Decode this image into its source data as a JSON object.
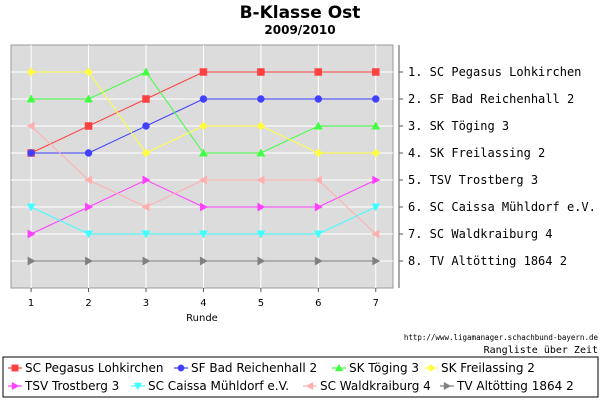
{
  "chart_data": {
    "type": "line",
    "title": "B-Klasse Ost",
    "subtitle": "2009/2010",
    "xlabel": "Runde",
    "ylabel": "",
    "x": [
      1,
      2,
      3,
      4,
      5,
      6,
      7
    ],
    "ylim": [
      9,
      0
    ],
    "y_inverted": true,
    "grid": true,
    "legend_placement": "bottom",
    "rank_labels": [
      "1. SC Pegasus Lohkirchen",
      "2. SF Bad Reichenhall 2",
      "3. SK Töging 3",
      "4. SK Freilassing 2",
      "5. TSV Trostberg 3",
      "6. SC Caissa Mühldorf e.V.",
      "7. SC Waldkraiburg 4",
      "8. TV Altötting 1864 2"
    ],
    "source": "http://www.ligamanager.schachbund-bayern.de",
    "caption": "Rangliste über Zeit",
    "series": [
      {
        "name": "SC Pegasus Lohkirchen",
        "color": "#ff4040",
        "marker": "square",
        "values": [
          4,
          3,
          2,
          1,
          1,
          1,
          1
        ]
      },
      {
        "name": "SF Bad Reichenhall 2",
        "color": "#4040ff",
        "marker": "circle",
        "values": [
          4,
          4,
          3,
          2,
          2,
          2,
          2
        ]
      },
      {
        "name": "SK Töging 3",
        "color": "#40ff40",
        "marker": "triangle-up",
        "values": [
          2,
          2,
          1,
          4,
          4,
          3,
          3
        ]
      },
      {
        "name": "SK Freilassing 2",
        "color": "#ffff40",
        "marker": "diamond",
        "values": [
          1,
          1,
          4,
          3,
          3,
          4,
          4
        ]
      },
      {
        "name": "TSV Trostberg 3",
        "color": "#ff40ff",
        "marker": "triangle-right",
        "values": [
          7,
          6,
          5,
          6,
          6,
          6,
          5
        ]
      },
      {
        "name": "SC Caissa Mühldorf e.V.",
        "color": "#40ffff",
        "marker": "triangle-down",
        "values": [
          6,
          7,
          7,
          7,
          7,
          7,
          6
        ]
      },
      {
        "name": "SC Waldkraiburg 4",
        "color": "#ffafaf",
        "marker": "triangle-left",
        "values": [
          3,
          5,
          6,
          5,
          5,
          5,
          7
        ]
      },
      {
        "name": "TV Altötting 1864 2",
        "color": "#808080",
        "marker": "triangle-right",
        "values": [
          8,
          8,
          8,
          8,
          8,
          8,
          8
        ]
      }
    ]
  }
}
